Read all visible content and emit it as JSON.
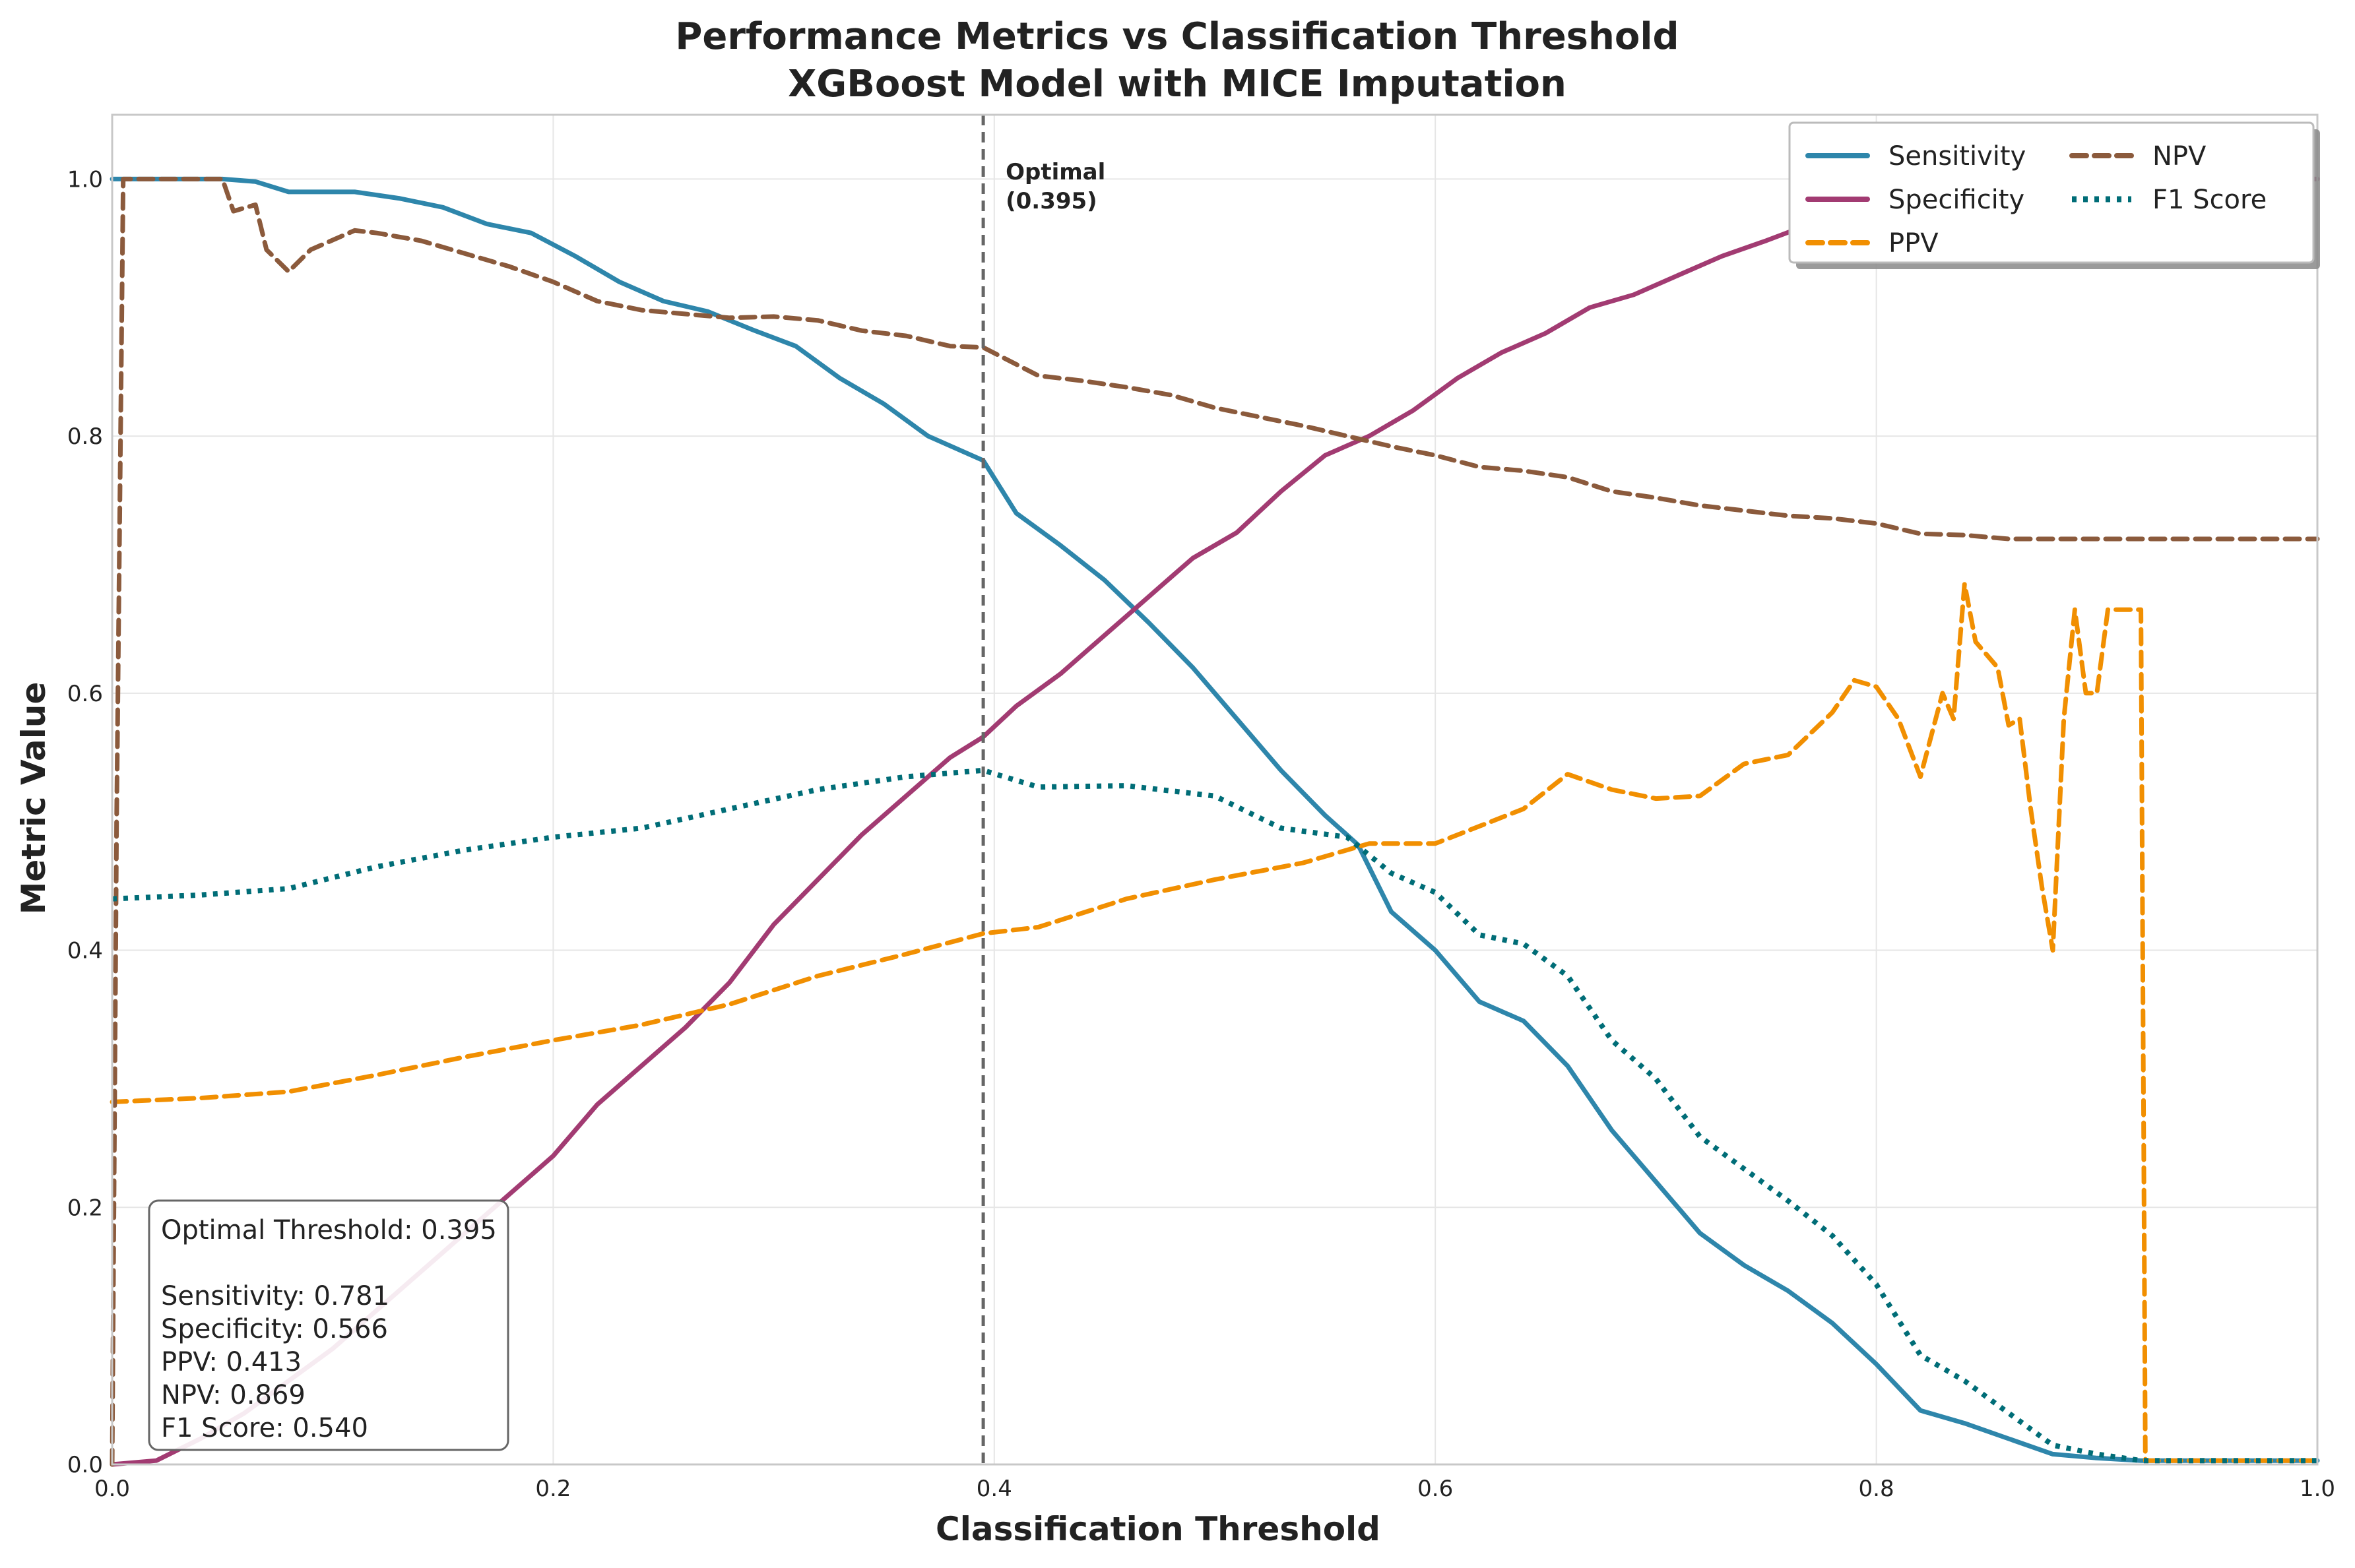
{
  "chart_data": {
    "type": "line",
    "title": "Performance Metrics vs Classification Threshold",
    "subtitle": "XGBoost Model with MICE Imputation",
    "xlabel": "Classification Threshold",
    "ylabel": "Metric Value",
    "xlim": [
      0,
      1
    ],
    "ylim": [
      0,
      1
    ],
    "grid": true,
    "legend_position": "top-right",
    "x_ticks": [
      "0.0",
      "0.2",
      "0.4",
      "0.6",
      "0.8",
      "1.0"
    ],
    "y_ticks": [
      "0.0",
      "0.2",
      "0.4",
      "0.6",
      "0.8",
      "1.0"
    ],
    "optimal_threshold": 0.395,
    "optimal_label_line1": "Optimal",
    "optimal_label_line2": "(0.395)",
    "info_box": [
      "Optimal Threshold: 0.395",
      "",
      "Sensitivity: 0.781",
      "Specificity: 0.566",
      "PPV: 0.413",
      "NPV: 0.869",
      "F1 Score: 0.540"
    ],
    "series": [
      {
        "name": "Sensitivity",
        "color": "#2E86AB",
        "dash": "solid",
        "points": [
          [
            0,
            1.0
          ],
          [
            0.05,
            1.0
          ],
          [
            0.065,
            0.998
          ],
          [
            0.08,
            0.99
          ],
          [
            0.11,
            0.99
          ],
          [
            0.13,
            0.985
          ],
          [
            0.15,
            0.978
          ],
          [
            0.17,
            0.965
          ],
          [
            0.19,
            0.958
          ],
          [
            0.21,
            0.94
          ],
          [
            0.23,
            0.92
          ],
          [
            0.25,
            0.905
          ],
          [
            0.27,
            0.897
          ],
          [
            0.29,
            0.883
          ],
          [
            0.31,
            0.87
          ],
          [
            0.33,
            0.845
          ],
          [
            0.35,
            0.825
          ],
          [
            0.37,
            0.8
          ],
          [
            0.395,
            0.781
          ],
          [
            0.41,
            0.74
          ],
          [
            0.43,
            0.715
          ],
          [
            0.45,
            0.688
          ],
          [
            0.47,
            0.655
          ],
          [
            0.49,
            0.62
          ],
          [
            0.51,
            0.58
          ],
          [
            0.53,
            0.54
          ],
          [
            0.55,
            0.505
          ],
          [
            0.565,
            0.482
          ],
          [
            0.58,
            0.43
          ],
          [
            0.6,
            0.4
          ],
          [
            0.62,
            0.36
          ],
          [
            0.64,
            0.345
          ],
          [
            0.66,
            0.31
          ],
          [
            0.68,
            0.26
          ],
          [
            0.7,
            0.22
          ],
          [
            0.72,
            0.18
          ],
          [
            0.74,
            0.155
          ],
          [
            0.76,
            0.135
          ],
          [
            0.78,
            0.11
          ],
          [
            0.8,
            0.078
          ],
          [
            0.82,
            0.042
          ],
          [
            0.84,
            0.032
          ],
          [
            0.86,
            0.02
          ],
          [
            0.88,
            0.008
          ],
          [
            0.9,
            0.005
          ],
          [
            0.92,
            0.003
          ],
          [
            1.0,
            0.003
          ]
        ]
      },
      {
        "name": "Specificity",
        "color": "#A23B72",
        "dash": "solid",
        "points": [
          [
            0,
            0.0
          ],
          [
            0.02,
            0.003
          ],
          [
            0.04,
            0.02
          ],
          [
            0.06,
            0.04
          ],
          [
            0.08,
            0.065
          ],
          [
            0.1,
            0.09
          ],
          [
            0.12,
            0.12
          ],
          [
            0.14,
            0.15
          ],
          [
            0.16,
            0.18
          ],
          [
            0.18,
            0.21
          ],
          [
            0.2,
            0.24
          ],
          [
            0.22,
            0.28
          ],
          [
            0.24,
            0.31
          ],
          [
            0.26,
            0.34
          ],
          [
            0.28,
            0.375
          ],
          [
            0.3,
            0.42
          ],
          [
            0.32,
            0.455
          ],
          [
            0.34,
            0.49
          ],
          [
            0.36,
            0.52
          ],
          [
            0.38,
            0.55
          ],
          [
            0.395,
            0.566
          ],
          [
            0.41,
            0.59
          ],
          [
            0.43,
            0.615
          ],
          [
            0.45,
            0.645
          ],
          [
            0.47,
            0.675
          ],
          [
            0.49,
            0.705
          ],
          [
            0.51,
            0.725
          ],
          [
            0.53,
            0.757
          ],
          [
            0.55,
            0.785
          ],
          [
            0.57,
            0.8
          ],
          [
            0.59,
            0.82
          ],
          [
            0.61,
            0.845
          ],
          [
            0.63,
            0.865
          ],
          [
            0.65,
            0.88
          ],
          [
            0.67,
            0.9
          ],
          [
            0.69,
            0.91
          ],
          [
            0.71,
            0.925
          ],
          [
            0.73,
            0.94
          ],
          [
            0.75,
            0.952
          ],
          [
            0.77,
            0.965
          ],
          [
            0.79,
            0.975
          ],
          [
            0.82,
            0.985
          ],
          [
            0.86,
            0.995
          ],
          [
            0.9,
            1.0
          ],
          [
            1.0,
            1.0
          ]
        ]
      },
      {
        "name": "PPV",
        "color": "#F18F01",
        "dash": "dashed",
        "points": [
          [
            0,
            0.282
          ],
          [
            0.04,
            0.285
          ],
          [
            0.08,
            0.29
          ],
          [
            0.12,
            0.303
          ],
          [
            0.16,
            0.317
          ],
          [
            0.2,
            0.33
          ],
          [
            0.24,
            0.342
          ],
          [
            0.28,
            0.358
          ],
          [
            0.32,
            0.38
          ],
          [
            0.36,
            0.397
          ],
          [
            0.395,
            0.413
          ],
          [
            0.42,
            0.418
          ],
          [
            0.46,
            0.44
          ],
          [
            0.5,
            0.455
          ],
          [
            0.54,
            0.468
          ],
          [
            0.57,
            0.483
          ],
          [
            0.6,
            0.483
          ],
          [
            0.64,
            0.51
          ],
          [
            0.66,
            0.537
          ],
          [
            0.68,
            0.525
          ],
          [
            0.7,
            0.518
          ],
          [
            0.72,
            0.52
          ],
          [
            0.74,
            0.545
          ],
          [
            0.76,
            0.552
          ],
          [
            0.78,
            0.585
          ],
          [
            0.79,
            0.61
          ],
          [
            0.8,
            0.605
          ],
          [
            0.81,
            0.58
          ],
          [
            0.82,
            0.535
          ],
          [
            0.83,
            0.6
          ],
          [
            0.835,
            0.58
          ],
          [
            0.84,
            0.685
          ],
          [
            0.845,
            0.64
          ],
          [
            0.855,
            0.62
          ],
          [
            0.86,
            0.575
          ],
          [
            0.865,
            0.58
          ],
          [
            0.87,
            0.51
          ],
          [
            0.875,
            0.45
          ],
          [
            0.88,
            0.4
          ],
          [
            0.885,
            0.58
          ],
          [
            0.89,
            0.665
          ],
          [
            0.895,
            0.6
          ],
          [
            0.9,
            0.6
          ],
          [
            0.905,
            0.665
          ],
          [
            0.915,
            0.665
          ],
          [
            0.92,
            0.665
          ],
          [
            0.922,
            0.003
          ],
          [
            1.0,
            0.003
          ]
        ]
      },
      {
        "name": "NPV",
        "color": "#8B5A3C",
        "dash": "dashed",
        "points": [
          [
            0,
            0.0
          ],
          [
            0.002,
            0.5
          ],
          [
            0.005,
            1.0
          ],
          [
            0.05,
            1.0
          ],
          [
            0.055,
            0.975
          ],
          [
            0.065,
            0.98
          ],
          [
            0.07,
            0.945
          ],
          [
            0.08,
            0.928
          ],
          [
            0.09,
            0.945
          ],
          [
            0.11,
            0.96
          ],
          [
            0.12,
            0.958
          ],
          [
            0.14,
            0.952
          ],
          [
            0.16,
            0.942
          ],
          [
            0.18,
            0.932
          ],
          [
            0.2,
            0.92
          ],
          [
            0.22,
            0.905
          ],
          [
            0.24,
            0.898
          ],
          [
            0.26,
            0.895
          ],
          [
            0.28,
            0.892
          ],
          [
            0.3,
            0.893
          ],
          [
            0.32,
            0.89
          ],
          [
            0.34,
            0.882
          ],
          [
            0.36,
            0.878
          ],
          [
            0.38,
            0.87
          ],
          [
            0.395,
            0.869
          ],
          [
            0.42,
            0.847
          ],
          [
            0.44,
            0.843
          ],
          [
            0.46,
            0.838
          ],
          [
            0.48,
            0.832
          ],
          [
            0.5,
            0.822
          ],
          [
            0.52,
            0.815
          ],
          [
            0.54,
            0.808
          ],
          [
            0.56,
            0.8
          ],
          [
            0.58,
            0.792
          ],
          [
            0.6,
            0.785
          ],
          [
            0.62,
            0.776
          ],
          [
            0.64,
            0.773
          ],
          [
            0.66,
            0.768
          ],
          [
            0.68,
            0.757
          ],
          [
            0.7,
            0.752
          ],
          [
            0.72,
            0.746
          ],
          [
            0.74,
            0.742
          ],
          [
            0.76,
            0.738
          ],
          [
            0.78,
            0.736
          ],
          [
            0.8,
            0.732
          ],
          [
            0.82,
            0.724
          ],
          [
            0.84,
            0.723
          ],
          [
            0.86,
            0.72
          ],
          [
            0.9,
            0.72
          ],
          [
            1.0,
            0.72
          ]
        ]
      },
      {
        "name": "F1 Score",
        "color": "#006D77",
        "dash": "dotted",
        "points": [
          [
            0,
            0.44
          ],
          [
            0.04,
            0.443
          ],
          [
            0.08,
            0.448
          ],
          [
            0.12,
            0.465
          ],
          [
            0.16,
            0.478
          ],
          [
            0.2,
            0.488
          ],
          [
            0.24,
            0.495
          ],
          [
            0.28,
            0.51
          ],
          [
            0.32,
            0.525
          ],
          [
            0.36,
            0.535
          ],
          [
            0.395,
            0.54
          ],
          [
            0.42,
            0.527
          ],
          [
            0.46,
            0.528
          ],
          [
            0.5,
            0.52
          ],
          [
            0.53,
            0.495
          ],
          [
            0.56,
            0.488
          ],
          [
            0.58,
            0.46
          ],
          [
            0.6,
            0.445
          ],
          [
            0.62,
            0.412
          ],
          [
            0.64,
            0.405
          ],
          [
            0.66,
            0.38
          ],
          [
            0.68,
            0.33
          ],
          [
            0.7,
            0.3
          ],
          [
            0.72,
            0.255
          ],
          [
            0.74,
            0.23
          ],
          [
            0.76,
            0.205
          ],
          [
            0.78,
            0.178
          ],
          [
            0.8,
            0.14
          ],
          [
            0.82,
            0.085
          ],
          [
            0.84,
            0.065
          ],
          [
            0.86,
            0.04
          ],
          [
            0.88,
            0.015
          ],
          [
            0.9,
            0.008
          ],
          [
            0.92,
            0.003
          ],
          [
            1.0,
            0.003
          ]
        ]
      }
    ]
  }
}
